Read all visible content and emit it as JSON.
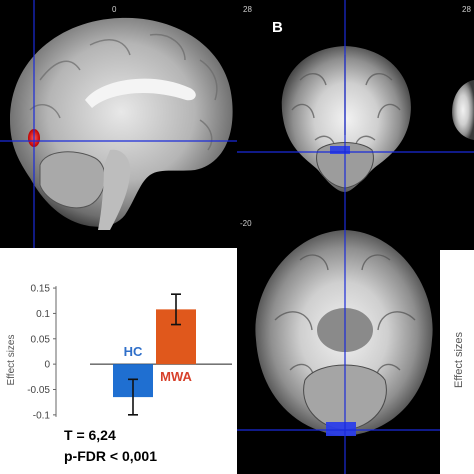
{
  "panels": {
    "left_top": {
      "slice_coord": "0",
      "note": ""
    },
    "right_top": {
      "panel_label": "B",
      "slice_coord_left": "28",
      "slice_coord_right": "28"
    },
    "right_bottom": {
      "slice_coord": "-20"
    }
  },
  "colors": {
    "hc_bar": "#1f6fd1",
    "mwa_bar": "#e0581c",
    "hc_label": "#2f6fc9",
    "mwa_label": "#d7402a",
    "crosshair": "#1a2bd9",
    "activation": "#e02020"
  },
  "chart_data": {
    "type": "bar",
    "categories": [
      "HC",
      "MWA"
    ],
    "values": [
      -0.065,
      0.108
    ],
    "errors": [
      0.035,
      0.03
    ],
    "ylabel": "Effect sizes",
    "ylim": [
      -0.12,
      0.16
    ],
    "yticks": [
      "0.15",
      "0.1",
      "0.05",
      "0",
      "-0.05",
      "-0.1"
    ],
    "ytick_values": [
      0.15,
      0.1,
      0.05,
      0,
      -0.05,
      -0.1
    ],
    "stats": {
      "t_line": "T = 6,24",
      "p_line": "p-FDR < 0,001"
    }
  },
  "right_chart": {
    "ylabel": "Effect sizes"
  }
}
